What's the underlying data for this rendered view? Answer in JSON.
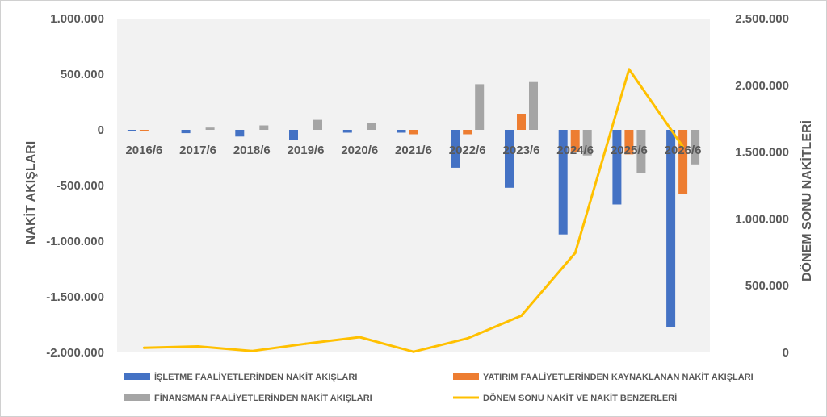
{
  "chart_data": {
    "type": "bar",
    "categories": [
      "2016/6",
      "2017/6",
      "2018/6",
      "2019/6",
      "2020/6",
      "2021/6",
      "2022/6",
      "2023/6",
      "2024/6",
      "2025/6",
      "2026/6"
    ],
    "series": [
      {
        "name": "İŞLETME FAALİYETLERİNDEN NAKİT AKIŞLARI",
        "type": "bar",
        "axis": "left",
        "color": "#4472c4",
        "values": [
          -10000,
          -30000,
          -60000,
          -90000,
          -25000,
          -25000,
          -340000,
          -520000,
          -940000,
          -670000,
          -1770000
        ]
      },
      {
        "name": "YATIRIM FAALİYETLERİNDEN KAYNAKLANAN NAKİT AKIŞLARI",
        "type": "bar",
        "axis": "left",
        "color": "#ed7d31",
        "values": [
          -5000,
          0,
          0,
          0,
          0,
          -40000,
          -40000,
          145000,
          -200000,
          -220000,
          -580000
        ]
      },
      {
        "name": "FİNANSMAN FAALİYETLERİNDEN NAKİT AKIŞLARI",
        "type": "bar",
        "axis": "left",
        "color": "#a5a5a5",
        "values": [
          0,
          20000,
          40000,
          90000,
          60000,
          0,
          410000,
          430000,
          -230000,
          -390000,
          -310000
        ]
      },
      {
        "name": "DÖNEM SONU NAKİT VE NAKİT BENZERLERİ",
        "type": "line",
        "axis": "right",
        "color": "#ffc000",
        "values": [
          35000,
          45000,
          10000,
          65000,
          115000,
          5000,
          105000,
          275000,
          745000,
          2120000,
          1540000
        ]
      }
    ],
    "xlabel": "",
    "ylabel": "NAKİT AKIŞLARI",
    "y2label": "DÖNEM SONU NAKİTLERİ",
    "ylim": [
      -2000000,
      1000000
    ],
    "y2lim": [
      0,
      2500000
    ],
    "yticks": [
      -2000000,
      -1500000,
      -1000000,
      -500000,
      0,
      500000,
      1000000
    ],
    "y2ticks": [
      0,
      500000,
      1000000,
      1500000,
      2000000,
      2500000
    ],
    "ytick_labels": [
      "-2.000.000",
      "-1.500.000",
      "-1.000.000",
      "-500.000",
      "0",
      "500.000",
      "1.000.000"
    ],
    "y2tick_labels": [
      "0",
      "500.000",
      "1.000.000",
      "1.500.000",
      "2.000.000",
      "2.500.000"
    ],
    "grid": false,
    "plot_background": "#f2f2f2",
    "legend_position": "bottom"
  }
}
